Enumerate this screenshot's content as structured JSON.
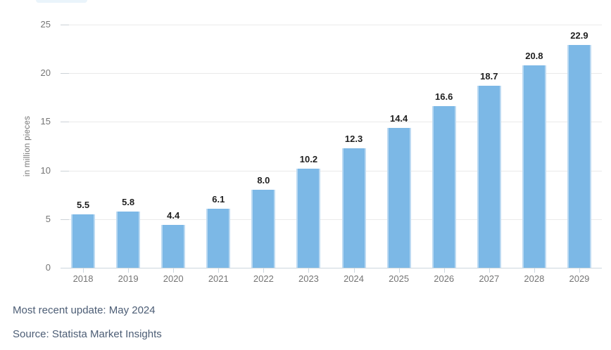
{
  "chart_data": {
    "type": "bar",
    "categories": [
      "2018",
      "2019",
      "2020",
      "2021",
      "2022",
      "2023",
      "2024",
      "2025",
      "2026",
      "2027",
      "2028",
      "2029"
    ],
    "values": [
      5.5,
      5.8,
      4.4,
      6.1,
      8.0,
      10.2,
      12.3,
      14.4,
      16.6,
      18.7,
      20.8,
      22.9
    ],
    "value_labels": [
      "5.5",
      "5.8",
      "4.4",
      "6.1",
      "8.0",
      "10.2",
      "12.3",
      "14.4",
      "16.6",
      "18.7",
      "20.8",
      "22.9"
    ],
    "title": "",
    "xlabel": "",
    "ylabel": "in million pieces",
    "ylim": [
      0,
      25
    ],
    "yticks": [
      0,
      5,
      10,
      15,
      20,
      25
    ],
    "grid": true,
    "legend": "none",
    "bar_color": "#7cb8e6",
    "bar_border_color": "#bcdaf2"
  },
  "colors": {
    "gridline": "#eaeaea",
    "baseline": "#ccd6dd",
    "tick": "#ccd2d7",
    "axis_text": "#757575",
    "value_text": "#1f1f1f",
    "footer_text": "#4c5d75",
    "top_pill": "#eaf4fb",
    "background": "#ffffff"
  },
  "footer": {
    "update_line": "Most recent update: May 2024",
    "source_line": "Source: Statista Market Insights"
  }
}
